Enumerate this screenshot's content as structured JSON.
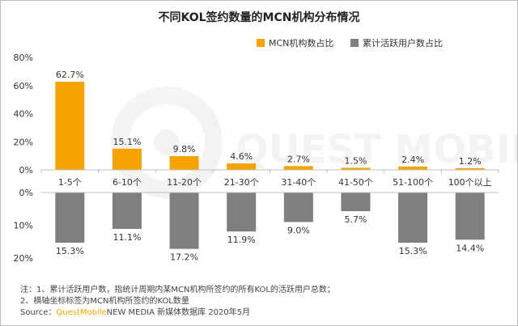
{
  "chart_data": {
    "type": "bar",
    "title": "不同KOL签约数量的MCN机构分布情况",
    "categories": [
      "1-5个",
      "6-10个",
      "11-20个",
      "21-30个",
      "31-40个",
      "41-50个",
      "51-100个",
      "100个以上"
    ],
    "series": [
      {
        "name": "MCN机构数占比",
        "color": "#f5a300",
        "values": [
          62.7,
          15.1,
          9.8,
          4.6,
          2.7,
          1.5,
          2.4,
          1.2
        ],
        "labels": [
          "62.7%",
          "15.1%",
          "9.8%",
          "4.6%",
          "2.7%",
          "1.5%",
          "2.4%",
          "1.2%"
        ]
      },
      {
        "name": "累计活跃用户数占比",
        "color": "#7f7f7f",
        "values": [
          15.3,
          11.1,
          17.2,
          11.9,
          9.0,
          5.7,
          15.3,
          14.4
        ],
        "labels": [
          "15.3%",
          "11.1%",
          "17.2%",
          "11.9%",
          "9.0%",
          "5.7%",
          "15.3%",
          "14.4%"
        ]
      }
    ],
    "top_axis": {
      "ylim": [
        0,
        80
      ],
      "ticks": [
        "0%",
        "20%",
        "40%",
        "60%",
        "80%"
      ]
    },
    "bottom_axis": {
      "ylim": [
        0,
        20
      ],
      "ticks": [
        "0%",
        "10%",
        "20%"
      ],
      "direction": "downward"
    },
    "legend_position": "top-right",
    "grid": false
  },
  "watermark": "QUEST MOBILE",
  "notes": {
    "line1": "注：1、累计活跃用户数，指统计周期内某MCN机构所签约的所有KOL的活跃用户总数；",
    "line2": "2、横轴坐标标签为MCN机构所签约的KOL数量",
    "source_prefix": "Source：",
    "source_brand": "QuestMobile",
    "source_rest": "NEW MEDIA 新媒体数据库 2020年5月"
  }
}
